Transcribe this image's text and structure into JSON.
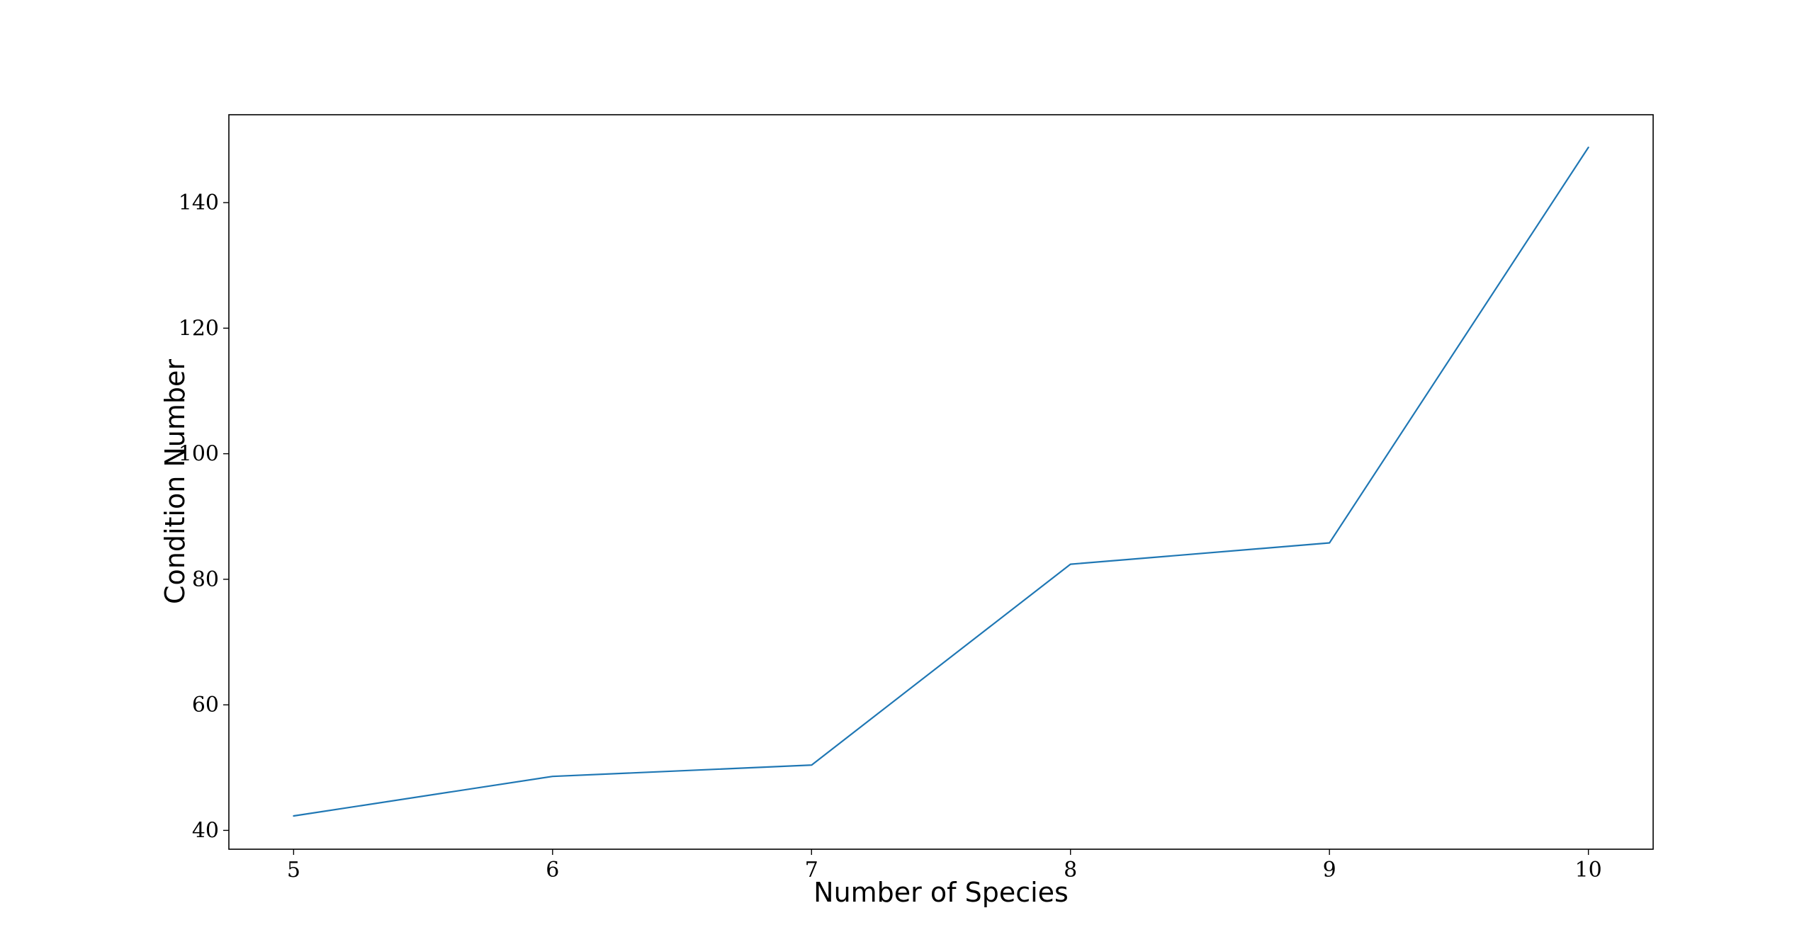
{
  "chart_data": {
    "type": "line",
    "title": "",
    "xlabel": "Number of Species",
    "ylabel": "Condition Number",
    "x": [
      5,
      6,
      7,
      8,
      9,
      10
    ],
    "series": [
      {
        "values": [
          42.3,
          48.6,
          50.4,
          82.4,
          85.8,
          148.8
        ],
        "color": "#1f77b4"
      }
    ],
    "xlim": [
      4.75,
      10.25
    ],
    "ylim": [
      37,
      154
    ],
    "xticks": [
      "5",
      "6",
      "7",
      "8",
      "9",
      "10"
    ],
    "yticks": [
      "40",
      "60",
      "80",
      "100",
      "120",
      "140"
    ],
    "grid": false,
    "legend": "none"
  }
}
